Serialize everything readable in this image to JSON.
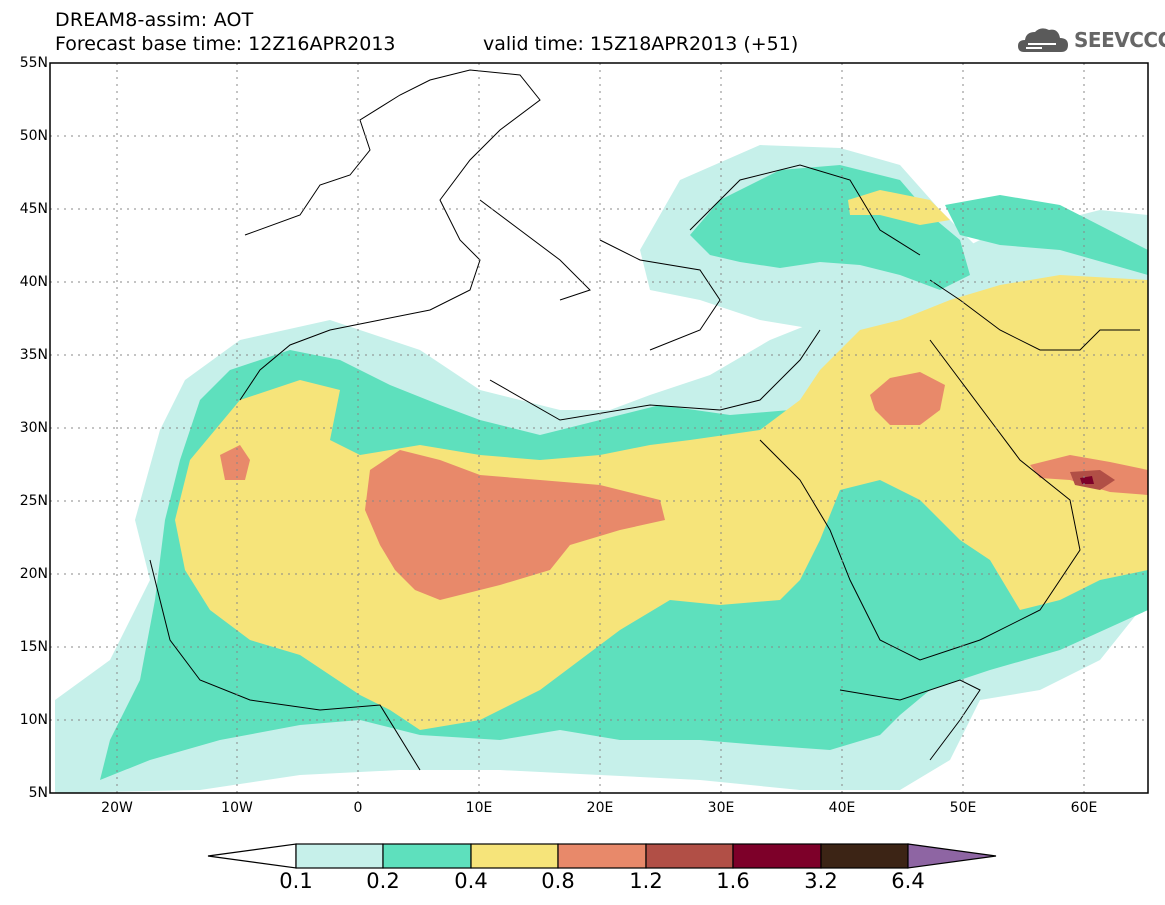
{
  "header": {
    "line1": "DREAM8-assim: AOT",
    "line2_base": "Forecast base time: 12Z16APR2013",
    "line2_valid": "valid time: 15Z18APR2013 (+51)"
  },
  "logo": {
    "text": "SEEVCCC",
    "icon": "cloud-icon"
  },
  "map": {
    "lon_range": [
      -25,
      65
    ],
    "lat_range": [
      5,
      55
    ],
    "gridlines": "dotted",
    "lat_labels": [
      "55N",
      "50N",
      "45N",
      "40N",
      "35N",
      "30N",
      "25N",
      "20N",
      "15N",
      "10N",
      "5N"
    ],
    "lon_labels": [
      "20W",
      "10W",
      "0",
      "10E",
      "20E",
      "30E",
      "40E",
      "50E",
      "60E"
    ]
  },
  "colorbar": {
    "levels": [
      "0.1",
      "0.2",
      "0.4",
      "0.8",
      "1.2",
      "1.6",
      "3.2",
      "6.4"
    ],
    "colors": [
      "#ffffff",
      "#c6f0ea",
      "#5ee0bd",
      "#f6e47a",
      "#e8896a",
      "#b14f46",
      "#7d0029",
      "#3c2415",
      "#8e65a3"
    ]
  }
}
